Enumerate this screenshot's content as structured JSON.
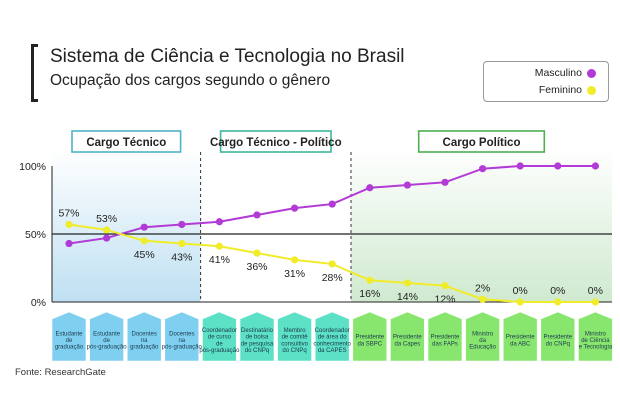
{
  "header": {
    "title": "Sistema de Ciência e Tecnologia no Brasil",
    "subtitle": "Ocupação dos cargos segundo o gênero"
  },
  "legend": {
    "items": [
      {
        "label": "Masculino",
        "color": "#b23ad6"
      },
      {
        "label": "Feminino",
        "color": "#f0ec2a"
      }
    ]
  },
  "source": "Fonte: ResearchGate",
  "chart_data": {
    "type": "line",
    "ylim": [
      0,
      100
    ],
    "yticks": [
      "0%",
      "50%",
      "100%"
    ],
    "grid": "horizontal line at 50%",
    "legend_position": "top-right",
    "sections": [
      {
        "label": "Cargo Técnico",
        "start": 0,
        "end": 3,
        "color": "#bfe0f2",
        "box_border": "#4fb3c7"
      },
      {
        "label": "Cargo Técnico - Político",
        "start": 4,
        "end": 7,
        "color": "#ffffff",
        "box_border": "#3fb79c"
      },
      {
        "label": "Cargo Político",
        "start": 8,
        "end": 14,
        "color": "#cfe9cf",
        "box_border": "#4caf50"
      }
    ],
    "categories": [
      "Estudante de graduação",
      "Estudante de pós-graduação",
      "Docentes na graduação",
      "Docentes na pós-graduação",
      "Coordenador de curso de pós-graduação",
      "Destinatário de bolsa de pesquisa do CNPq",
      "Membro de comitê consultivo do CNPq",
      "Coordenador de área do conhecimento da CAPES",
      "Presidente da SBPC",
      "Presidente da Capes",
      "Presidente das FAPs",
      "Ministro da Educação",
      "Presidente da ABC",
      "Presidente do CNPq",
      "Ministro de Ciência e Tecnologia"
    ],
    "category_lines": [
      [
        "Estudante",
        "de",
        "graduação"
      ],
      [
        "Estudante",
        "de",
        "pós-graduação"
      ],
      [
        "Docentes",
        "na",
        "graduação"
      ],
      [
        "Docentes",
        "na",
        "pós-graduação"
      ],
      [
        "Coordenador",
        "de curso",
        "de",
        "pós-graduação"
      ],
      [
        "Destinatário",
        "de bolsa",
        "de pesquisa",
        "do CNPq"
      ],
      [
        "Membro",
        "de comitê",
        "consultivo",
        "do CNPq"
      ],
      [
        "Coordenador",
        "de área do",
        "conhecimento",
        "da CAPES"
      ],
      [
        "Presidente",
        "da SBPC"
      ],
      [
        "Presidente",
        "da Capes"
      ],
      [
        "Presidente",
        "das FAPs"
      ],
      [
        "Ministro",
        "da",
        "Educação"
      ],
      [
        "Presidente",
        "da ABC"
      ],
      [
        "Presidente",
        "do CNPq"
      ],
      [
        "Ministro",
        "de Ciência",
        "e Tecnologia"
      ]
    ],
    "series": [
      {
        "name": "Masculino",
        "color": "#b23ad6",
        "values": [
          43,
          47,
          55,
          57,
          59,
          64,
          69,
          72,
          84,
          86,
          88,
          98,
          100,
          100,
          100
        ]
      },
      {
        "name": "Feminino",
        "color": "#f0ec2a",
        "values": [
          57,
          53,
          45,
          43,
          41,
          36,
          31,
          28,
          16,
          14,
          12,
          2,
          0,
          0,
          0
        ]
      }
    ],
    "data_labels": [
      "57%",
      "53%",
      "45%",
      "43%",
      "41%",
      "36%",
      "31%",
      "28%",
      "16%",
      "14%",
      "12%",
      "2%",
      "0%",
      "0%",
      "0%"
    ]
  }
}
